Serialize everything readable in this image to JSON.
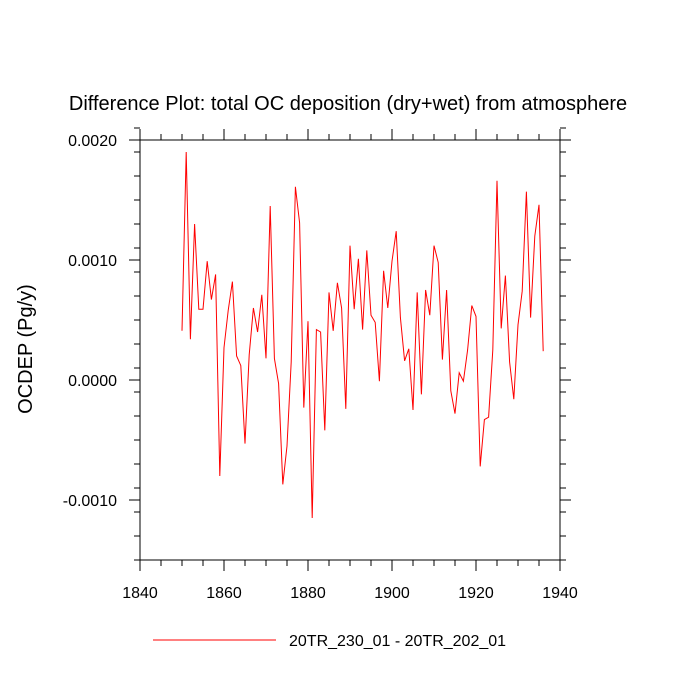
{
  "chart_data": {
    "type": "line",
    "title": "Difference Plot: total OC deposition (dry+wet) from atmosphere",
    "xlabel": "",
    "ylabel": "OCDEP  (Pg/y)",
    "xlim": [
      1840,
      1940
    ],
    "ylim": [
      -0.0015,
      0.002
    ],
    "xticks": [
      1840,
      1860,
      1880,
      1900,
      1920,
      1940
    ],
    "xtick_labels": [
      "1840",
      "1860",
      "1880",
      "1900",
      "1920",
      "1940"
    ],
    "yticks": [
      -0.001,
      0.0,
      0.001,
      0.002
    ],
    "ytick_labels": [
      "-0.0010",
      "0.0000",
      "0.0010",
      "0.0020"
    ],
    "x_minor_step": 5,
    "y_minor_step": 0.0002,
    "grid": false,
    "legend_position": "bottom-center",
    "series": [
      {
        "name": "20TR_230_01 - 20TR_202_01",
        "color": "#ff0000",
        "x": [
          1850,
          1851,
          1852,
          1853,
          1854,
          1855,
          1856,
          1857,
          1858,
          1859,
          1860,
          1861,
          1862,
          1863,
          1864,
          1865,
          1866,
          1867,
          1868,
          1869,
          1870,
          1871,
          1872,
          1873,
          1874,
          1875,
          1876,
          1877,
          1878,
          1879,
          1880,
          1881,
          1882,
          1883,
          1884,
          1885,
          1886,
          1887,
          1888,
          1889,
          1890,
          1891,
          1892,
          1893,
          1894,
          1895,
          1896,
          1897,
          1898,
          1899,
          1900,
          1901,
          1902,
          1903,
          1904,
          1905,
          1906,
          1907,
          1908,
          1909,
          1910,
          1911,
          1912,
          1913,
          1914,
          1915,
          1916,
          1917,
          1918,
          1919,
          1920,
          1921,
          1922,
          1923,
          1924,
          1925,
          1926,
          1927,
          1928,
          1929,
          1930,
          1931,
          1932,
          1933,
          1934,
          1935,
          1936
        ],
        "values": [
          0.00041,
          0.0019,
          0.00034,
          0.0013,
          0.00059,
          0.00059,
          0.00099,
          0.00067,
          0.00088,
          -0.0008,
          0.00027,
          0.00058,
          0.00082,
          0.0002,
          0.00012,
          -0.00053,
          0.00021,
          0.0006,
          0.0004,
          0.00071,
          0.00018,
          0.00145,
          0.00018,
          -3e-05,
          -0.00087,
          -0.00055,
          0.00015,
          0.00161,
          0.00131,
          -0.00023,
          0.00049,
          -0.00115,
          0.00042,
          0.0004,
          -0.00042,
          0.00073,
          0.00041,
          0.00081,
          0.0006,
          -0.00024,
          0.00112,
          0.00059,
          0.00101,
          0.00042,
          0.00108,
          0.00054,
          0.00048,
          -1e-05,
          0.00091,
          0.0006,
          0.00099,
          0.00124,
          0.00052,
          0.00016,
          0.00026,
          -0.00025,
          0.00073,
          -0.00012,
          0.00075,
          0.00054,
          0.00112,
          0.00098,
          0.00017,
          0.00075,
          -9e-05,
          -0.00028,
          6e-05,
          -1e-05,
          0.00025,
          0.00062,
          0.00053,
          -0.00072,
          -0.00033,
          -0.00031,
          0.00025,
          0.00166,
          0.00043,
          0.00087,
          0.00015,
          -0.00016,
          0.00046,
          0.00074,
          0.00157,
          0.00052,
          0.0012,
          0.00146,
          0.00024
        ]
      }
    ]
  }
}
